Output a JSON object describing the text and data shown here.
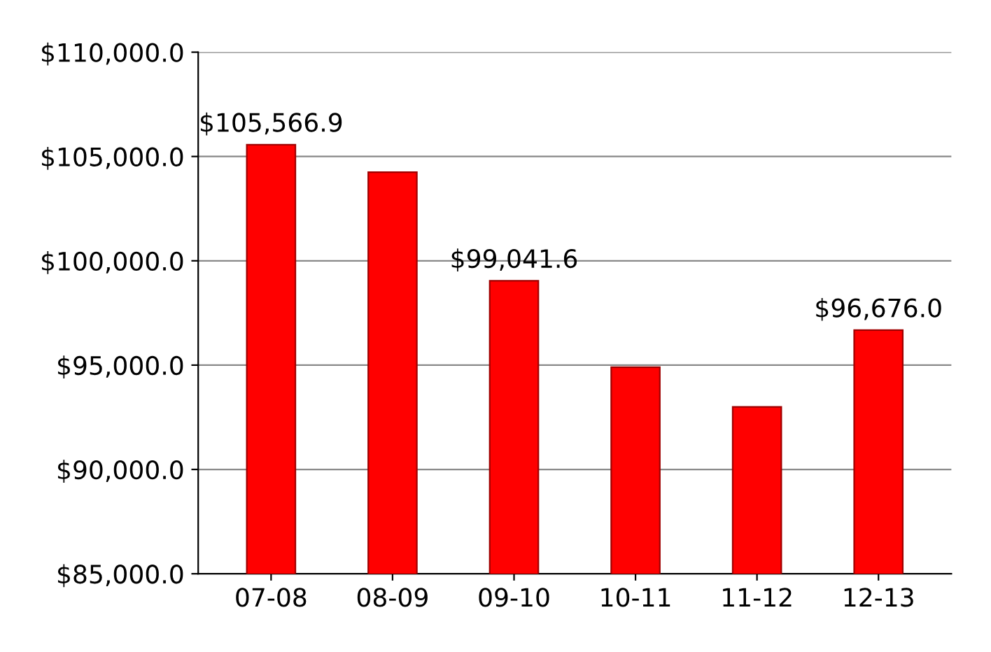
{
  "chart_data": {
    "type": "bar",
    "categories": [
      "07-08",
      "08-09",
      "09-10",
      "10-11",
      "11-12",
      "12-13"
    ],
    "values": [
      105566.9,
      104250,
      99041.6,
      94900,
      93000,
      96676.0
    ],
    "value_labels": [
      "$105,566.9",
      null,
      "$99,041.6",
      null,
      null,
      "$96,676.0"
    ],
    "color": "#ff0000",
    "ylim": [
      85000,
      110000
    ],
    "yticks": [
      {
        "value": 85000,
        "label": "$85,000.0"
      },
      {
        "value": 90000,
        "label": "$90,000.0"
      },
      {
        "value": 95000,
        "label": "$95,000.0"
      },
      {
        "value": 100000,
        "label": "$100,000.0"
      },
      {
        "value": 105000,
        "label": "$105,000.0"
      },
      {
        "value": 110000,
        "label": "$110,000.0"
      }
    ],
    "grid": "y"
  }
}
